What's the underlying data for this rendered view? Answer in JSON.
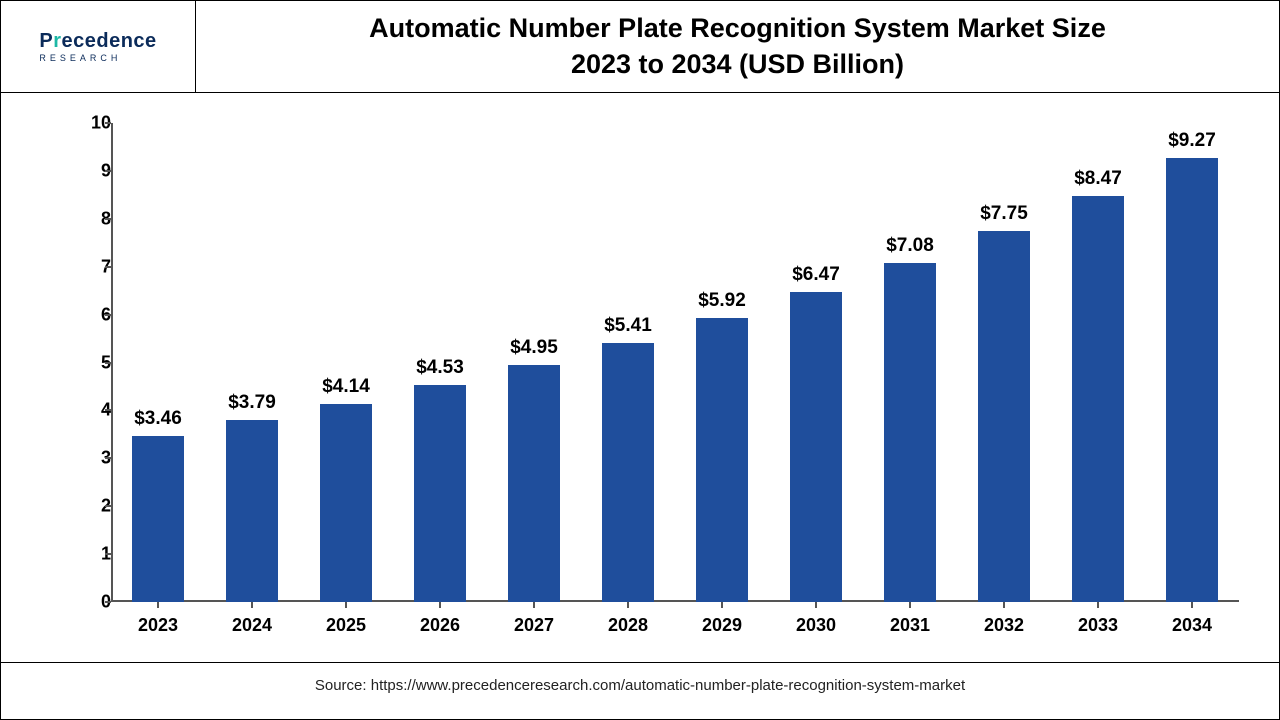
{
  "brand": {
    "name_pre": "P",
    "name_accent": "r",
    "name_rest": "ecedence",
    "sub": "RESEARCH",
    "color_primary": "#0b2b5a",
    "color_accent": "#1db8a6"
  },
  "title_line1": "Automatic Number Plate Recognition System Market Size",
  "title_line2": "2023 to 2034 (USD Billion)",
  "source": "Source: https://www.precedenceresearch.com/automatic-number-plate-recognition-system-market",
  "chart": {
    "type": "bar",
    "categories": [
      "2023",
      "2024",
      "2025",
      "2026",
      "2027",
      "2028",
      "2029",
      "2030",
      "2031",
      "2032",
      "2033",
      "2034"
    ],
    "values": [
      3.46,
      3.79,
      4.14,
      4.53,
      4.95,
      5.41,
      5.92,
      6.47,
      7.08,
      7.75,
      8.47,
      9.27
    ],
    "value_labels": [
      "$3.46",
      "$3.79",
      "$4.14",
      "$4.53",
      "$4.95",
      "$5.41",
      "$5.92",
      "$6.47",
      "$7.08",
      "$7.75",
      "$8.47",
      "$9.27"
    ],
    "bar_color": "#1f4e9c",
    "ylim": [
      0,
      10
    ],
    "ytick_step": 1,
    "y_ticks": [
      0,
      1,
      2,
      3,
      4,
      5,
      6,
      7,
      8,
      9,
      10
    ],
    "background_color": "#ffffff",
    "axis_color": "#555555",
    "label_fontsize": 18,
    "title_fontsize": 27,
    "value_label_fontsize": 19,
    "bar_width_ratio": 0.56
  }
}
